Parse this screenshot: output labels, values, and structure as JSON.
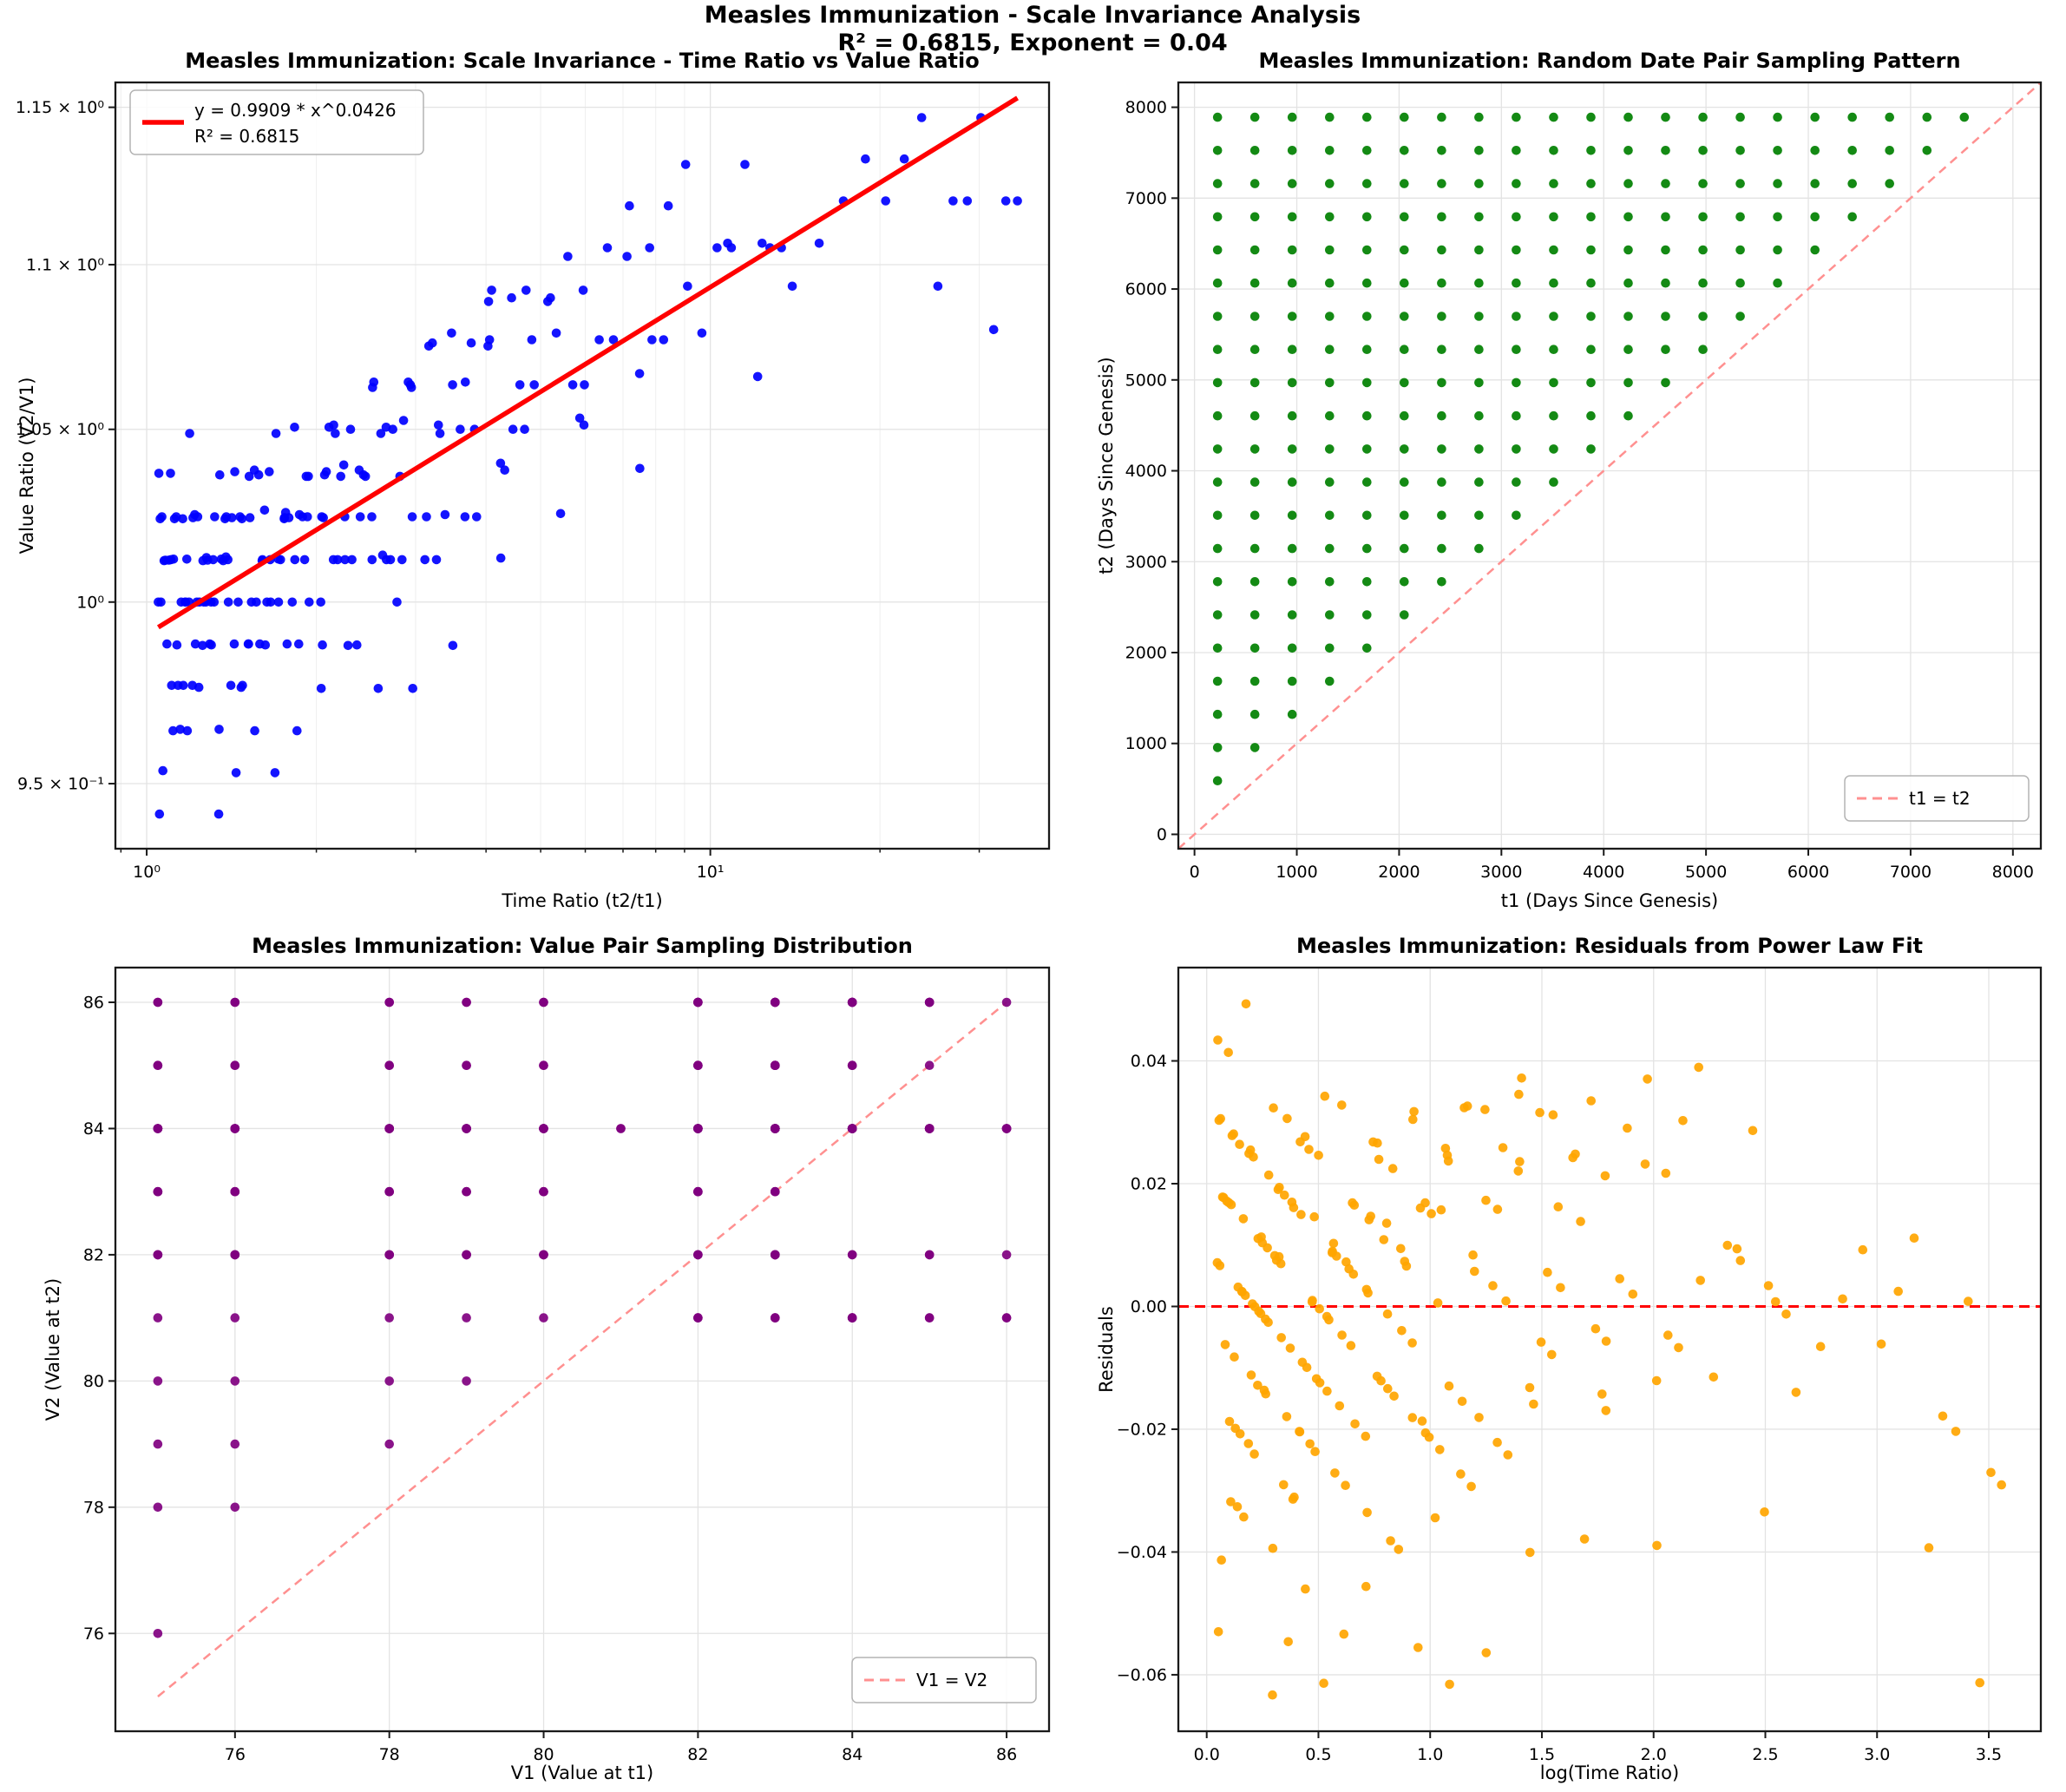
{
  "suptitle": {
    "line1": "Measles Immunization - Scale Invariance Analysis",
    "line2": "R² = 0.6815, Exponent = 0.04"
  },
  "fit": {
    "coefficient": 0.9909,
    "exponent": 0.0426,
    "r_squared": 0.6815
  },
  "series": {
    "label": "Measles Immunization",
    "t_days": [
      225,
      590,
      955,
      1320,
      1685,
      2050,
      2415,
      2780,
      3145,
      3510,
      3875,
      4240,
      4605,
      4970,
      5335,
      5700,
      6065,
      6430,
      6795,
      7160,
      7525,
      7890
    ],
    "values": [
      75,
      76,
      78,
      79,
      80,
      82,
      83,
      83,
      82,
      83,
      84,
      85,
      84,
      85,
      86,
      82,
      84,
      84,
      86,
      81,
      84,
      84
    ],
    "pairing": "all_pairs_t2_greater_t1"
  },
  "chart_data": [
    {
      "id": "scale-invariance",
      "type": "scatter",
      "title": "Measles Immunization: Scale Invariance - Time Ratio vs Value Ratio",
      "xlabel": "Time Ratio (t2/t1)",
      "ylabel": "Value Ratio (V2/V1)",
      "xscale": "log",
      "yscale": "log",
      "xlim": [
        0.88,
        39.9
      ],
      "ylim": [
        0.9327,
        1.1581
      ],
      "xticks": [
        {
          "v": 1,
          "label": "10⁰"
        },
        {
          "v": 10,
          "label": "10¹"
        }
      ],
      "xminor": [
        0.9,
        2,
        3,
        4,
        5,
        6,
        7,
        8,
        9,
        20,
        30
      ],
      "yticks": [
        {
          "v": 0.95,
          "label": "9.5 × 10⁻¹"
        },
        {
          "v": 1.0,
          "label": "10⁰"
        },
        {
          "v": 1.05,
          "label": "1.05 × 10⁰"
        },
        {
          "v": 1.1,
          "label": "1.1 × 10⁰"
        },
        {
          "v": 1.15,
          "label": "1.15 × 10⁰"
        }
      ],
      "point_rule": "time_ratio_vs_value_ratio",
      "point_color": "#0000ff",
      "ref_line": {
        "kind": "power_fit",
        "x1": 1.0485,
        "x2": 35.067,
        "color": "#ff0000",
        "width": 5.5,
        "dash": null,
        "on_top": true
      },
      "legend": {
        "corner": "top-left",
        "entries": [
          {
            "handle": "solid",
            "color": "#ff0000",
            "label": "y = 0.9909 * x^0.0426"
          },
          {
            "handle": "none",
            "color": null,
            "label": "R² = 0.6815"
          }
        ]
      }
    },
    {
      "id": "date-pair-sampling",
      "type": "scatter",
      "title": "Measles Immunization: Random Date Pair Sampling Pattern",
      "xlabel": "t1 (Days Since Genesis)",
      "ylabel": "t2 (Days Since Genesis)",
      "xscale": "linear",
      "yscale": "linear",
      "xlim": [
        -158,
        8273
      ],
      "ylim": [
        -158,
        8273
      ],
      "xticks": [
        {
          "v": 0,
          "label": "0"
        },
        {
          "v": 1000,
          "label": "1000"
        },
        {
          "v": 2000,
          "label": "2000"
        },
        {
          "v": 3000,
          "label": "3000"
        },
        {
          "v": 4000,
          "label": "4000"
        },
        {
          "v": 5000,
          "label": "5000"
        },
        {
          "v": 6000,
          "label": "6000"
        },
        {
          "v": 7000,
          "label": "7000"
        },
        {
          "v": 8000,
          "label": "8000"
        }
      ],
      "xminor": [],
      "yticks": [
        {
          "v": 0,
          "label": "0"
        },
        {
          "v": 1000,
          "label": "1000"
        },
        {
          "v": 2000,
          "label": "2000"
        },
        {
          "v": 3000,
          "label": "3000"
        },
        {
          "v": 4000,
          "label": "4000"
        },
        {
          "v": 5000,
          "label": "5000"
        },
        {
          "v": 6000,
          "label": "6000"
        },
        {
          "v": 7000,
          "label": "7000"
        },
        {
          "v": 8000,
          "label": "8000"
        }
      ],
      "point_rule": "date_pair",
      "point_color": "#008000",
      "ref_line": {
        "kind": "segment",
        "x1": -158,
        "y1": -158,
        "x2": 8273,
        "y2": 8273,
        "color": "#ff9090",
        "width": 2.5,
        "dash": "10 7",
        "on_top": false
      },
      "legend": {
        "corner": "bottom-right",
        "entries": [
          {
            "handle": "dashed",
            "color": "#ff9090",
            "label": "t1 = t2"
          }
        ]
      }
    },
    {
      "id": "value-pair-sampling",
      "type": "scatter",
      "title": "Measles Immunization: Value Pair Sampling Distribution",
      "xlabel": "V1 (Value at t1)",
      "ylabel": "V2 (Value at t2)",
      "xscale": "linear",
      "yscale": "linear",
      "xlim": [
        74.45,
        86.55
      ],
      "ylim": [
        74.45,
        86.55
      ],
      "xticks": [
        {
          "v": 76,
          "label": "76"
        },
        {
          "v": 78,
          "label": "78"
        },
        {
          "v": 80,
          "label": "80"
        },
        {
          "v": 82,
          "label": "82"
        },
        {
          "v": 84,
          "label": "84"
        },
        {
          "v": 86,
          "label": "86"
        }
      ],
      "xminor": [],
      "yticks": [
        {
          "v": 76,
          "label": "76"
        },
        {
          "v": 78,
          "label": "78"
        },
        {
          "v": 80,
          "label": "80"
        },
        {
          "v": 82,
          "label": "82"
        },
        {
          "v": 84,
          "label": "84"
        },
        {
          "v": 86,
          "label": "86"
        }
      ],
      "point_rule": "value_pair",
      "point_color": "#800080",
      "ref_line": {
        "kind": "segment",
        "x1": 75,
        "y1": 75,
        "x2": 86,
        "y2": 86,
        "color": "#ff9090",
        "width": 2.5,
        "dash": "10 7",
        "on_top": false
      },
      "legend": {
        "corner": "bottom-right",
        "entries": [
          {
            "handle": "dashed",
            "color": "#ff9090",
            "label": "V1 = V2"
          }
        ]
      }
    },
    {
      "id": "residuals",
      "type": "scatter",
      "title": "Measles Immunization: Residuals from Power Law Fit",
      "xlabel": "log(Time Ratio)",
      "ylabel": "Residuals",
      "xscale": "linear",
      "yscale": "linear",
      "xlim": [
        -0.127,
        3.733
      ],
      "ylim": [
        -0.0692,
        0.0552
      ],
      "xticks": [
        {
          "v": 0.0,
          "label": "0.0"
        },
        {
          "v": 0.5,
          "label": "0.5"
        },
        {
          "v": 1.0,
          "label": "1.0"
        },
        {
          "v": 1.5,
          "label": "1.5"
        },
        {
          "v": 2.0,
          "label": "2.0"
        },
        {
          "v": 2.5,
          "label": "2.5"
        },
        {
          "v": 3.0,
          "label": "3.0"
        },
        {
          "v": 3.5,
          "label": "3.5"
        }
      ],
      "xminor": [],
      "yticks": [
        {
          "v": -0.06,
          "label": "−0.06"
        },
        {
          "v": -0.04,
          "label": "−0.04"
        },
        {
          "v": -0.02,
          "label": "−0.02"
        },
        {
          "v": 0.0,
          "label": "0.00"
        },
        {
          "v": 0.02,
          "label": "0.02"
        },
        {
          "v": 0.04,
          "label": "0.04"
        }
      ],
      "point_rule": "residual",
      "point_color": "#ffa500",
      "ref_line": {
        "kind": "hline",
        "y": 0,
        "color": "#ff0000",
        "width": 3,
        "dash": "12 7",
        "on_top": false
      },
      "legend": null
    }
  ],
  "style_colors": {
    "grid_major": "#e3e3e3",
    "grid_minor": "#f0f0f0",
    "spine": "#1a1a1a",
    "background": "#ffffff"
  }
}
